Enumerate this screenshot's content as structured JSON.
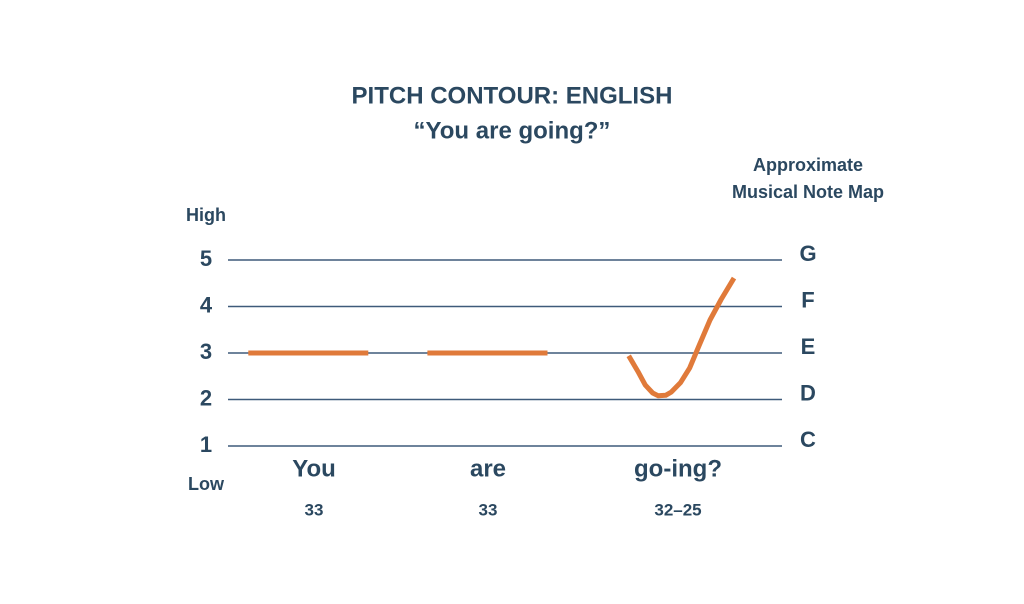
{
  "chart_data": {
    "type": "line",
    "title": "PITCH CONTOUR: ENGLISH",
    "subtitle": "“You are going?”",
    "y_high_label": "High",
    "y_low_label": "Low",
    "y2_title": [
      "Approximate",
      "Musical Note Map"
    ],
    "ylim": [
      1,
      5
    ],
    "yticks": [
      1,
      2,
      3,
      4,
      5
    ],
    "y2lim": [
      1,
      5
    ],
    "y2ticks": [
      {
        "value": 1,
        "label": "C"
      },
      {
        "value": 2,
        "label": "D"
      },
      {
        "value": 3,
        "label": "E"
      },
      {
        "value": 4,
        "label": "F"
      },
      {
        "value": 5,
        "label": "G"
      }
    ],
    "xlim": [
      0,
      3
    ],
    "categories": [
      "You",
      "are",
      "go-ing?"
    ],
    "category_codes": [
      "33",
      "33",
      "32–25"
    ],
    "grid": true,
    "series": [
      {
        "color": "#e07a3a",
        "x": [
          0.11,
          0.76,
          0.9,
          1.08,
          1.73,
          1.9,
          2.17,
          2.22,
          2.26,
          2.3,
          2.33,
          2.37,
          2.4,
          2.45,
          2.5,
          2.55,
          2.61,
          2.67,
          2.74
        ],
        "values": [
          3,
          3,
          null,
          3,
          3,
          null,
          2.94,
          2.6,
          2.31,
          2.14,
          2.08,
          2.09,
          2.16,
          2.36,
          2.68,
          3.15,
          3.71,
          4.15,
          4.61
        ]
      }
    ]
  }
}
